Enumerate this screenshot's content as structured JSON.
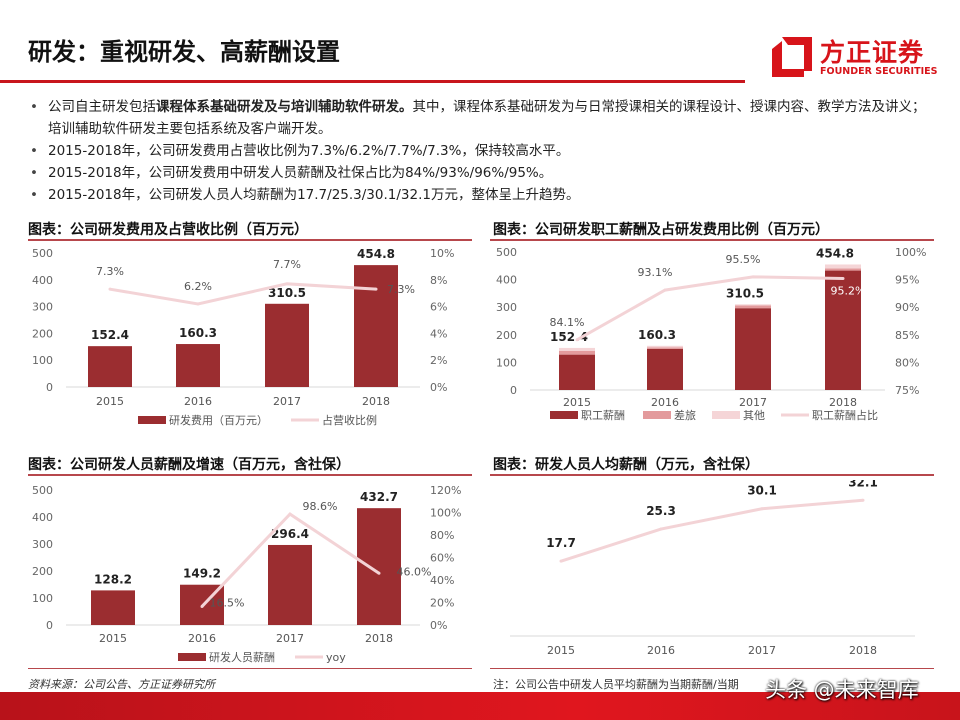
{
  "header": {
    "title": "研发：重视研发、高薪酬设置",
    "logo_cn": "方正证券",
    "logo_en": "FOUNDER SECURITIES",
    "accent": "#c8161d"
  },
  "bullets": [
    {
      "pre": "公司自主研发包括",
      "bold": "课程体系基础研发及与培训辅助软件研发。",
      "post": "其中，课程体系基础研发为与日常授课相关的课程设计、授课内容、教学方法及讲义；培训辅助软件研发主要包括系统及客户端开发。"
    },
    {
      "pre": "2015-2018年，公司研发费用占营收比例为7.3%/6.2%/7.7%/7.3%，保持较高水平。",
      "bold": "",
      "post": ""
    },
    {
      "pre": "2015-2018年，公司研发费用中研发人员薪酬及社保占比为84%/93%/96%/95%。",
      "bold": "",
      "post": ""
    },
    {
      "pre": "2015-2018年，公司研发人员人均薪酬为17.7/25.3/30.1/32.1万元，整体呈上升趋势。",
      "bold": "",
      "post": ""
    }
  ],
  "titles": [
    "图表：公司研发费用及占营收比例（百万元）",
    "图表：公司研发职工薪酬及占研发费用比例（百万元）",
    "图表：公司研发人员薪酬及增速（百万元，含社保）",
    "图表：研发人员人均薪酬（万元，含社保）"
  ],
  "source": "资料来源：公司公告、方正证券研究所",
  "note": "注：公司公告中研发人员平均薪酬为当期薪酬/当期",
  "watermark": "头条 @未来智库",
  "colors": {
    "bar": "#9b2d30",
    "travel": "#e39a9c",
    "other": "#f5d5d7",
    "line": "#f3d3d6"
  },
  "chart_data": [
    {
      "type": "bar+line",
      "categories": [
        "2015",
        "2016",
        "2017",
        "2018"
      ],
      "series": [
        {
          "name": "研发费用（百万元）",
          "kind": "bar",
          "values": [
            152.4,
            160.3,
            310.5,
            454.8
          ]
        },
        {
          "name": "占营收比例",
          "kind": "line",
          "axis": "right",
          "values": [
            7.3,
            6.2,
            7.7,
            7.3
          ],
          "labels": [
            "7.3%",
            "6.2%",
            "7.7%",
            "7.3%"
          ]
        }
      ],
      "ylim": [
        0,
        500
      ],
      "yticks": [
        "0",
        "100",
        "200",
        "300",
        "400",
        "500"
      ],
      "y2lim": [
        0,
        10
      ],
      "y2ticks": [
        "0%",
        "2%",
        "4%",
        "6%",
        "8%",
        "10%"
      ],
      "legend": "bottom"
    },
    {
      "type": "stacked-bar+line",
      "categories": [
        "2015",
        "2016",
        "2017",
        "2018"
      ],
      "totals": [
        "152.4",
        "160.3",
        "310.5",
        "454.8"
      ],
      "series": [
        {
          "name": "职工薪酬",
          "kind": "bar",
          "values": [
            128.2,
            149.2,
            296.4,
            432.7
          ]
        },
        {
          "name": "差旅",
          "kind": "bar",
          "values": [
            14,
            5,
            10,
            8
          ]
        },
        {
          "name": "其他",
          "kind": "bar",
          "values": [
            10.2,
            5.9,
            4.1,
            14.1
          ]
        },
        {
          "name": "职工薪酬占比",
          "kind": "line",
          "axis": "right",
          "values": [
            84.1,
            93.1,
            95.5,
            95.2
          ],
          "labels": [
            "84.1%",
            "93.1%",
            "95.5%",
            "95.2%"
          ]
        }
      ],
      "ylim": [
        0,
        500
      ],
      "yticks": [
        "0",
        "100",
        "200",
        "300",
        "400",
        "500"
      ],
      "y2lim": [
        75,
        100
      ],
      "y2ticks": [
        "75%",
        "80%",
        "85%",
        "90%",
        "95%",
        "100%"
      ],
      "legend": "bottom"
    },
    {
      "type": "bar+line",
      "categories": [
        "2015",
        "2016",
        "2017",
        "2018"
      ],
      "series": [
        {
          "name": "研发人员薪酬",
          "kind": "bar",
          "values": [
            128.2,
            149.2,
            296.4,
            432.7
          ]
        },
        {
          "name": "yoy",
          "kind": "line",
          "axis": "right",
          "values": [
            null,
            16.5,
            98.6,
            46.0
          ],
          "labels": [
            "",
            "16.5%",
            "98.6%",
            "46.0%"
          ]
        }
      ],
      "ylim": [
        0,
        500
      ],
      "yticks": [
        "0",
        "100",
        "200",
        "300",
        "400",
        "500"
      ],
      "y2lim": [
        0,
        120
      ],
      "y2ticks": [
        "0%",
        "20%",
        "40%",
        "60%",
        "80%",
        "100%",
        "120%"
      ],
      "legend": "bottom"
    },
    {
      "type": "line",
      "categories": [
        "2015",
        "2016",
        "2017",
        "2018"
      ],
      "series": [
        {
          "kind": "line",
          "values": [
            17.7,
            25.3,
            30.1,
            32.1
          ],
          "labels": [
            "17.7",
            "25.3",
            "30.1",
            "32.1"
          ]
        }
      ],
      "ylim": [
        0,
        35
      ]
    }
  ]
}
